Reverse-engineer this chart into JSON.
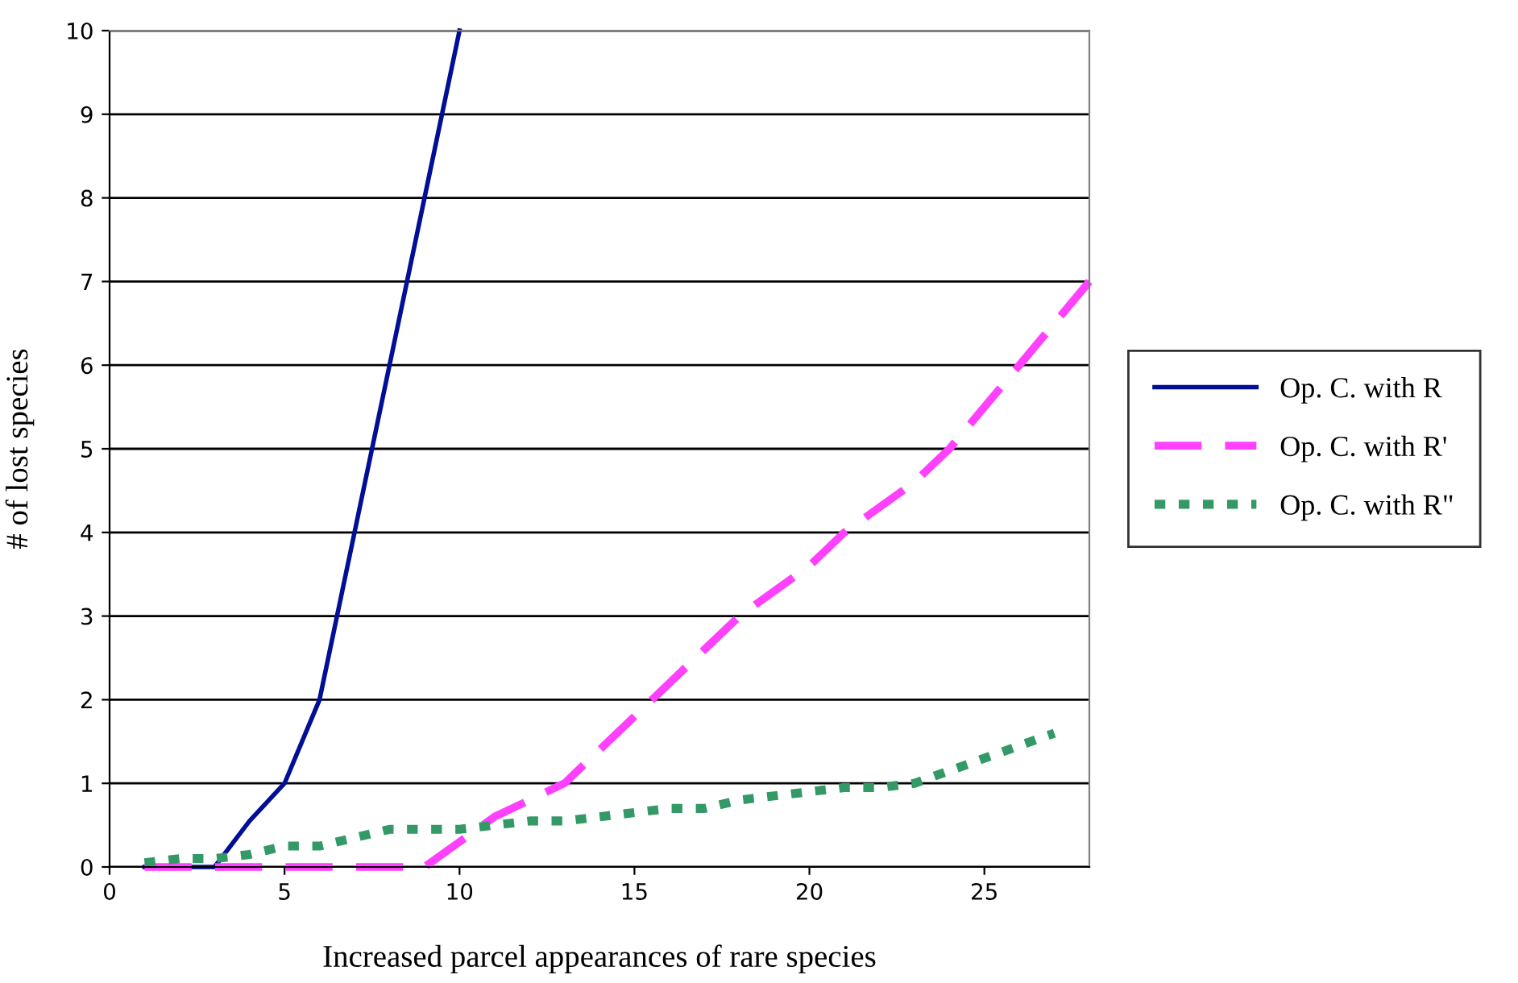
{
  "chart_data": {
    "type": "line",
    "xlabel": "Increased parcel appearances of rare species",
    "ylabel": "# of lost species",
    "xlim": [
      0,
      28
    ],
    "xticks": [
      0,
      5,
      10,
      15,
      20,
      25
    ],
    "ylim": [
      0,
      10
    ],
    "yticks": [
      0,
      1,
      2,
      3,
      4,
      5,
      6,
      7,
      8,
      9,
      10
    ],
    "grid": "y",
    "legend": "right",
    "marker": "none",
    "series": [
      {
        "name": "Op. C. with R",
        "color": "#000f96",
        "line_style": "solid",
        "x": [
          1,
          2,
          3,
          4,
          5,
          6,
          7,
          8,
          9,
          10
        ],
        "values": [
          0,
          0,
          0,
          0.55,
          1,
          2,
          4,
          6,
          8,
          10
        ]
      },
      {
        "name": "Op. C. with R'",
        "color": "#ff40ff",
        "line_style": "dashed",
        "x": [
          1,
          2,
          3,
          4,
          5,
          6,
          7,
          8,
          9,
          10,
          11,
          12,
          13,
          14,
          15,
          16,
          17,
          18,
          19,
          20,
          21,
          22,
          23,
          24,
          25,
          26,
          27,
          28
        ],
        "values": [
          0,
          0,
          0,
          0,
          0,
          0,
          0,
          0,
          0,
          0.3,
          0.6,
          0.8,
          1.0,
          1.4,
          1.8,
          2.2,
          2.6,
          3.0,
          3.3,
          3.6,
          4.0,
          4.3,
          4.6,
          5.0,
          5.5,
          6.0,
          6.5,
          7.0
        ]
      },
      {
        "name": "Op. C. with R\"",
        "color": "#339966",
        "line_style": "dotted",
        "x": [
          1,
          2,
          3,
          4,
          5,
          6,
          7,
          8,
          9,
          10,
          11,
          12,
          13,
          14,
          15,
          16,
          17,
          18,
          19,
          20,
          21,
          22,
          23,
          24,
          25,
          26,
          27
        ],
        "values": [
          0.05,
          0.1,
          0.1,
          0.15,
          0.25,
          0.25,
          0.35,
          0.45,
          0.45,
          0.45,
          0.5,
          0.55,
          0.55,
          0.6,
          0.65,
          0.7,
          0.7,
          0.8,
          0.85,
          0.9,
          0.95,
          0.95,
          1.0,
          1.15,
          1.3,
          1.45,
          1.6
        ]
      }
    ]
  }
}
